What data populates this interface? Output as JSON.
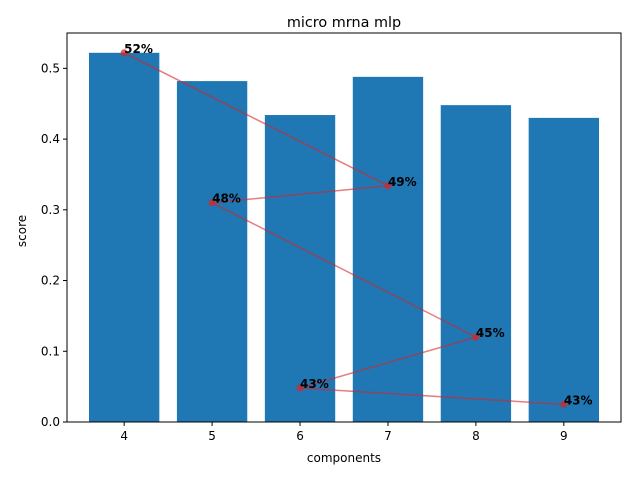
{
  "chart_data": {
    "type": "bar",
    "title": "micro mrna  mlp",
    "xlabel": "components",
    "ylabel": "score",
    "categories": [
      "4",
      "5",
      "6",
      "7",
      "8",
      "9"
    ],
    "x": [
      4,
      5,
      6,
      7,
      8,
      9
    ],
    "values": [
      0.522,
      0.482,
      0.434,
      0.488,
      0.448,
      0.43
    ],
    "ylim": [
      0.0,
      0.55
    ],
    "xlim": [
      3.35,
      9.65
    ],
    "yticks": [
      "0.0",
      "0.1",
      "0.2",
      "0.3",
      "0.4",
      "0.5"
    ],
    "grid": false,
    "bar_color": "#1f77b4",
    "overlay": {
      "type": "line",
      "color": "#d62728",
      "marker": "o",
      "x": [
        4,
        7,
        5,
        8,
        6,
        9
      ],
      "y": [
        0.522,
        0.334,
        0.31,
        0.12,
        0.048,
        0.025
      ],
      "labels": [
        "52%",
        "49%",
        "48%",
        "45%",
        "43%",
        "43%"
      ]
    }
  }
}
